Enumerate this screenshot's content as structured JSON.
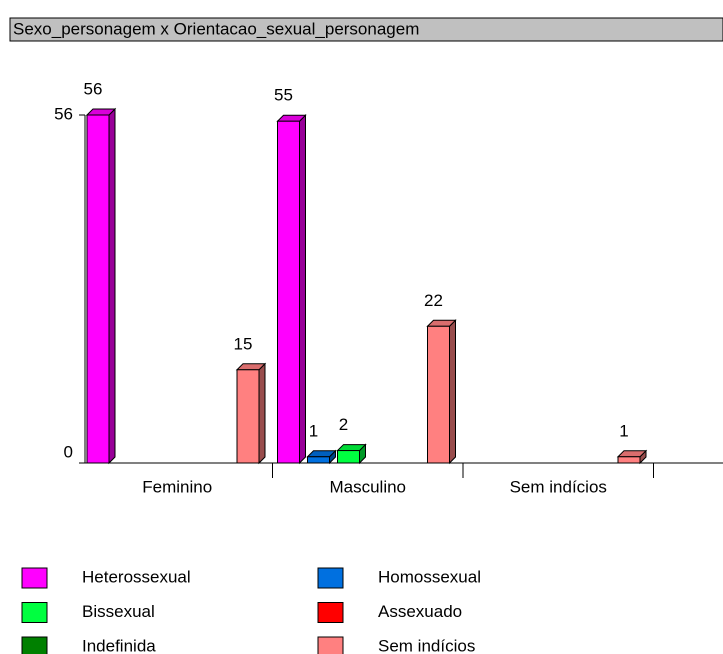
{
  "chart_data": {
    "type": "bar3d",
    "title": "Sexo_personagem x Orientacao_sexual_personagem",
    "categories": [
      "Feminino",
      "Masculino",
      "Sem indícios"
    ],
    "series": [
      {
        "name": "Heterossexual",
        "color": "#ff00ff",
        "values": [
          56,
          55,
          null
        ]
      },
      {
        "name": "Homossexual",
        "color": "#0070e0",
        "values": [
          null,
          1,
          null
        ]
      },
      {
        "name": "Bissexual",
        "color": "#00ff40",
        "values": [
          null,
          2,
          null
        ]
      },
      {
        "name": "Assexuado",
        "color": "#ff0000",
        "values": [
          null,
          null,
          null
        ]
      },
      {
        "name": "Indefinida",
        "color": "#008000",
        "values": [
          null,
          null,
          null
        ]
      },
      {
        "name": "Sem indícios",
        "color": "#ff8080",
        "values": [
          15,
          22,
          1
        ]
      }
    ],
    "ylim": [
      0,
      56
    ],
    "yticks": [
      0,
      56
    ],
    "legend": "bottom"
  }
}
